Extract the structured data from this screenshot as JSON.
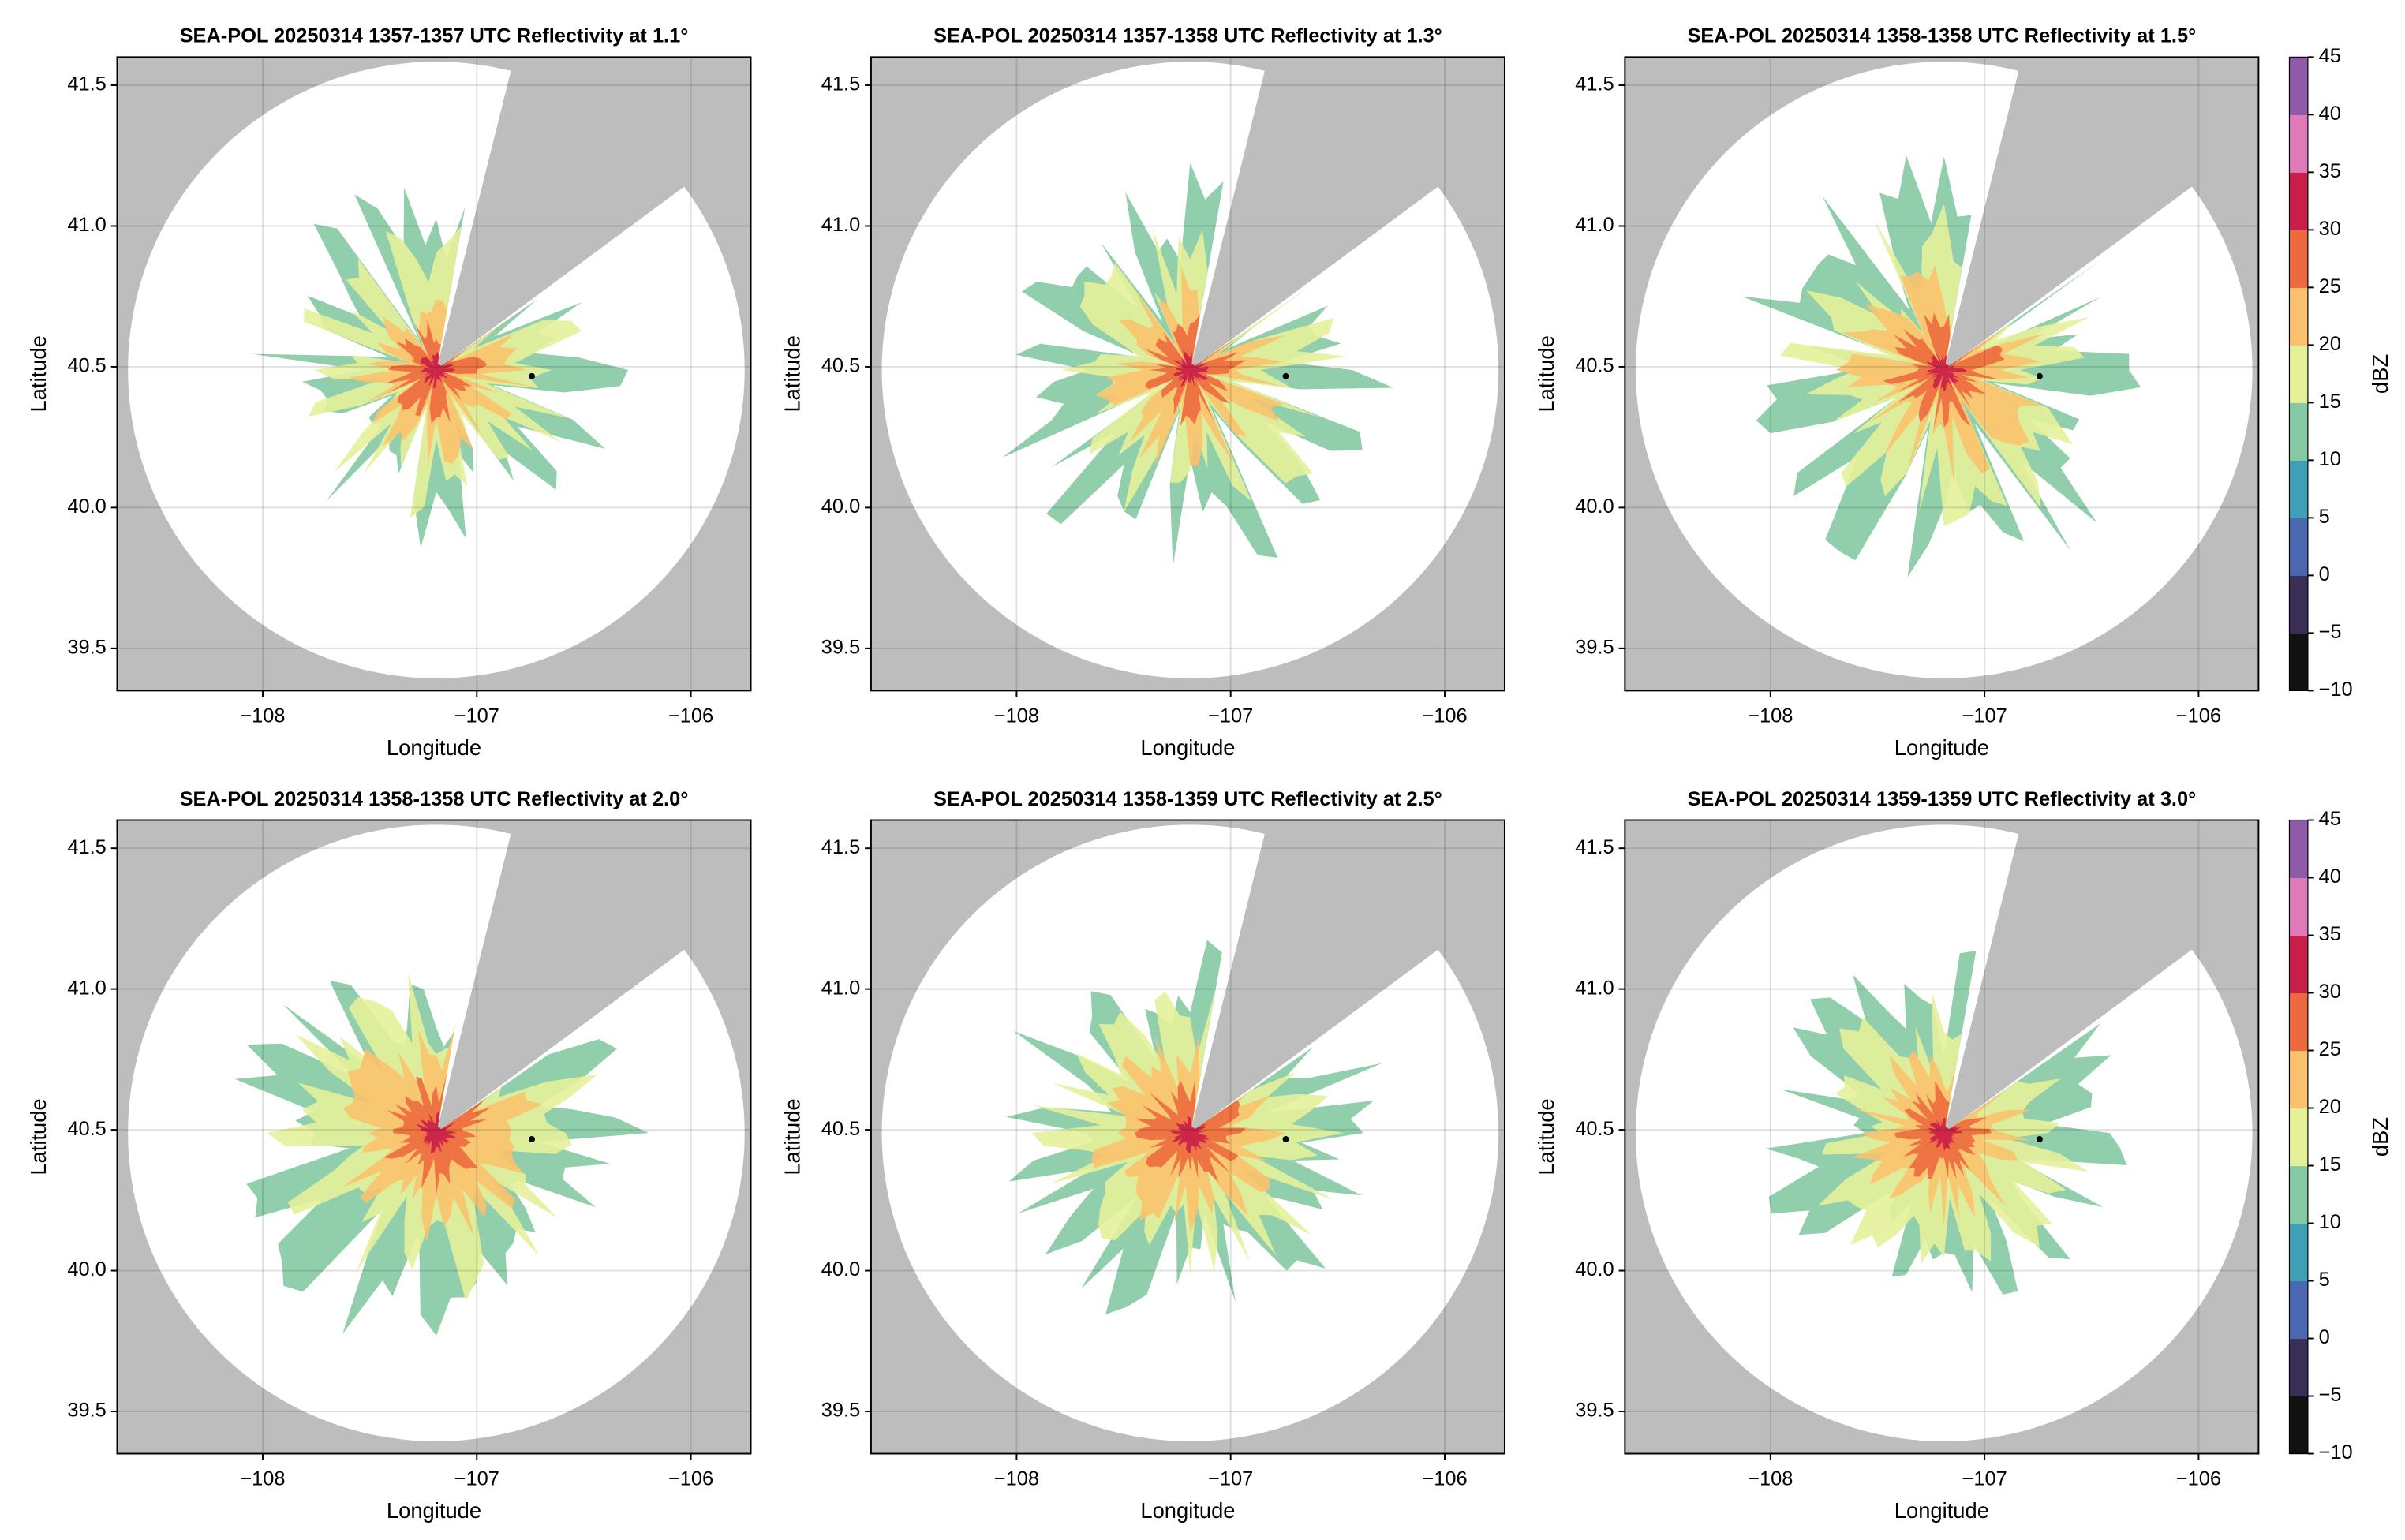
{
  "chart_data": [
    {
      "type": "radar_ppi",
      "title": "SEA-POL 20250314 1357-1357 UTC Reflectivity at 1.1°",
      "xlabel": "Longitude",
      "ylabel": "Latitude",
      "xlim": [
        -108.68,
        -105.72
      ],
      "ylim": [
        39.35,
        41.6
      ],
      "xticks": [
        {
          "value": -108,
          "label": "−108"
        },
        {
          "value": -107,
          "label": "−107"
        },
        {
          "value": -106,
          "label": "−106"
        }
      ],
      "yticks": [
        39.5,
        {
          "value": 40.0,
          "label": "40.0"
        },
        40.5,
        {
          "value": 41.0,
          "label": "41.0"
        },
        41.5
      ]
    },
    {
      "type": "radar_ppi",
      "title": "SEA-POL 20250314 1357-1358 UTC Reflectivity at 1.3°",
      "xlabel": "Longitude",
      "ylabel": "Latitude",
      "xlim": [
        -108.68,
        -105.72
      ],
      "ylim": [
        39.35,
        41.6
      ],
      "xticks": [
        {
          "value": -108,
          "label": "−108"
        },
        {
          "value": -107,
          "label": "−107"
        },
        {
          "value": -106,
          "label": "−106"
        }
      ],
      "yticks": [
        39.5,
        {
          "value": 40.0,
          "label": "40.0"
        },
        40.5,
        {
          "value": 41.0,
          "label": "41.0"
        },
        41.5
      ]
    },
    {
      "type": "radar_ppi",
      "title": "SEA-POL 20250314 1358-1358 UTC Reflectivity at 1.5°",
      "xlabel": "Longitude",
      "ylabel": "Latitude",
      "xlim": [
        -108.68,
        -105.72
      ],
      "ylim": [
        39.35,
        41.6
      ],
      "xticks": [
        {
          "value": -108,
          "label": "−108"
        },
        {
          "value": -107,
          "label": "−107"
        },
        {
          "value": -106,
          "label": "−106"
        }
      ],
      "yticks": [
        39.5,
        {
          "value": 40.0,
          "label": "40.0"
        },
        40.5,
        {
          "value": 41.0,
          "label": "41.0"
        },
        41.5
      ],
      "colorbar": {
        "label": "dBZ",
        "lim": [
          -10,
          45
        ],
        "ticks": [
          {
            "value": -10,
            "label": "−10"
          },
          {
            "value": -5,
            "label": "−5"
          },
          0,
          5,
          10,
          15,
          20,
          25,
          30,
          35,
          40,
          45
        ],
        "colors": [
          "#111111",
          "#3a2e55",
          "#4a67b0",
          "#3da0b4",
          "#85c9a3",
          "#e4f19a",
          "#fbc26e",
          "#ec6a3e",
          "#c81e4a",
          "#e07ab8",
          "#8f5aa8"
        ]
      }
    },
    {
      "type": "radar_ppi",
      "title": "SEA-POL 20250314 1358-1358 UTC Reflectivity at 2.0°",
      "xlabel": "Longitude",
      "ylabel": "Latitude",
      "xlim": [
        -108.68,
        -105.72
      ],
      "ylim": [
        39.35,
        41.6
      ],
      "xticks": [
        {
          "value": -108,
          "label": "−108"
        },
        {
          "value": -107,
          "label": "−107"
        },
        {
          "value": -106,
          "label": "−106"
        }
      ],
      "yticks": [
        39.5,
        {
          "value": 40.0,
          "label": "40.0"
        },
        40.5,
        {
          "value": 41.0,
          "label": "41.0"
        },
        41.5
      ]
    },
    {
      "type": "radar_ppi",
      "title": "SEA-POL 20250314 1358-1359 UTC Reflectivity at 2.5°",
      "xlabel": "Longitude",
      "ylabel": "Latitude",
      "xlim": [
        -108.68,
        -105.72
      ],
      "ylim": [
        39.35,
        41.6
      ],
      "xticks": [
        {
          "value": -108,
          "label": "−108"
        },
        {
          "value": -107,
          "label": "−107"
        },
        {
          "value": -106,
          "label": "−106"
        }
      ],
      "yticks": [
        39.5,
        {
          "value": 40.0,
          "label": "40.0"
        },
        40.5,
        {
          "value": 41.0,
          "label": "41.0"
        },
        41.5
      ]
    },
    {
      "type": "radar_ppi",
      "title": "SEA-POL 20250314 1359-1359 UTC Reflectivity at 3.0°",
      "xlabel": "Longitude",
      "ylabel": "Latitude",
      "xlim": [
        -108.68,
        -105.72
      ],
      "ylim": [
        39.35,
        41.6
      ],
      "xticks": [
        {
          "value": -108,
          "label": "−108"
        },
        {
          "value": -107,
          "label": "−107"
        },
        {
          "value": -106,
          "label": "−106"
        }
      ],
      "yticks": [
        39.5,
        {
          "value": 40.0,
          "label": "40.0"
        },
        40.5,
        {
          "value": 41.0,
          "label": "41.0"
        },
        41.5
      ],
      "colorbar": {
        "label": "dBZ",
        "lim": [
          -10,
          45
        ],
        "ticks": [
          {
            "value": -10,
            "label": "−10"
          },
          {
            "value": -5,
            "label": "−5"
          },
          0,
          5,
          10,
          15,
          20,
          25,
          30,
          35,
          40,
          45
        ],
        "colors": [
          "#111111",
          "#3a2e55",
          "#4a67b0",
          "#3da0b4",
          "#85c9a3",
          "#e4f19a",
          "#fbc26e",
          "#ec6a3e",
          "#c81e4a",
          "#e07ab8",
          "#8f5aa8"
        ]
      }
    }
  ]
}
